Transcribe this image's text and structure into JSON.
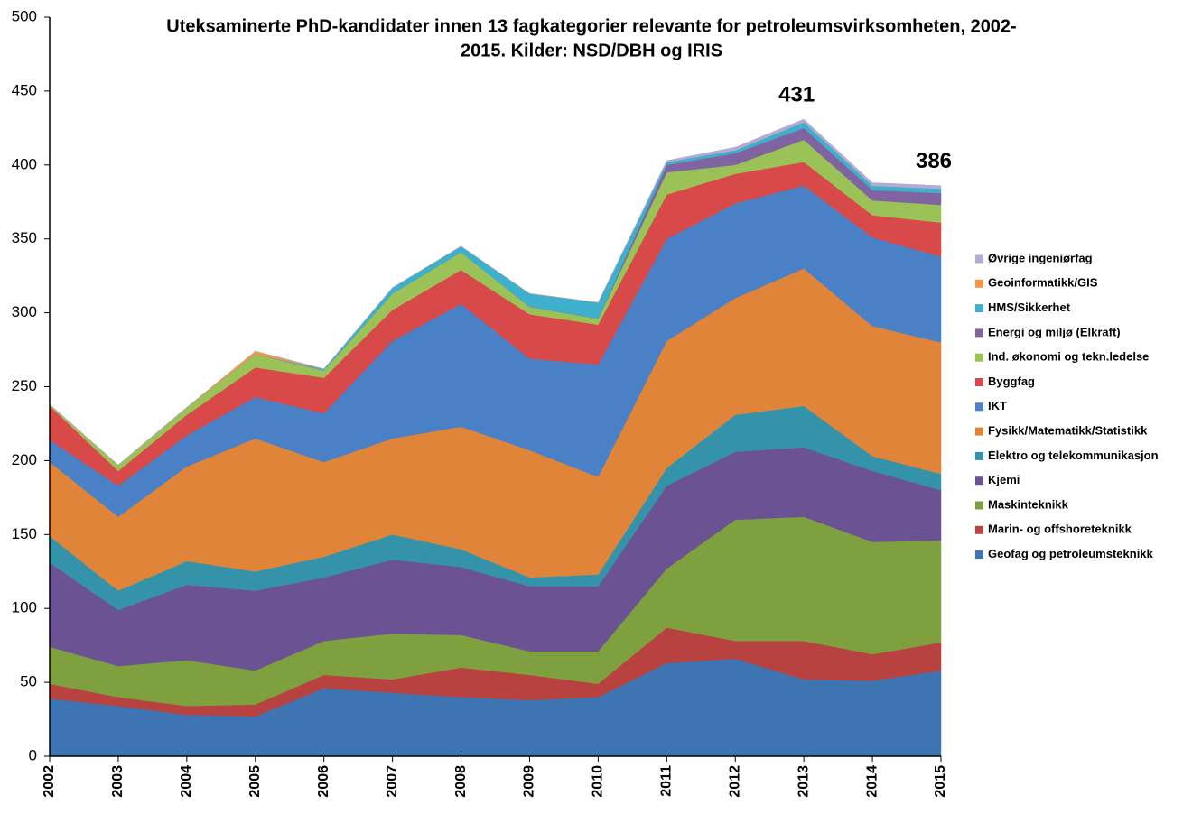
{
  "chart_data": {
    "type": "stacked-area",
    "title": [
      "Uteksaminerte PhD-kandidater innen 13 fagkategorier relevante for petroleumsvirksomheten, 2002-",
      "2015. Kilder: NSD/DBH og IRIS"
    ],
    "categories": [
      "2002",
      "2003",
      "2004",
      "2005",
      "2006",
      "2007",
      "2008",
      "2009",
      "2010",
      "2011",
      "2012",
      "2013",
      "2014",
      "2015"
    ],
    "ylim": [
      0,
      500
    ],
    "yticks": [
      0,
      50,
      100,
      150,
      200,
      250,
      300,
      350,
      400,
      450,
      500
    ],
    "series": [
      {
        "name": "Geofag og petroleumsteknikk",
        "color": "#3f74b3",
        "values": [
          39,
          34,
          28,
          27,
          46,
          43,
          40,
          38,
          40,
          63,
          66,
          52,
          51,
          58
        ]
      },
      {
        "name": "Marin- og offshoreteknikk",
        "color": "#b8423f",
        "values": [
          10,
          6,
          6,
          8,
          9,
          9,
          20,
          17,
          9,
          24,
          12,
          26,
          18,
          19
        ]
      },
      {
        "name": "Maskinteknikk",
        "color": "#7ea03e",
        "values": [
          25,
          21,
          31,
          23,
          23,
          31,
          22,
          16,
          22,
          40,
          82,
          84,
          76,
          69
        ]
      },
      {
        "name": "Kjemi",
        "color": "#6b5393",
        "values": [
          57,
          38,
          51,
          54,
          43,
          50,
          46,
          44,
          44,
          56,
          46,
          47,
          48,
          34
        ]
      },
      {
        "name": "Elektro og telekommunikasjon",
        "color": "#3593a9",
        "values": [
          18,
          13,
          16,
          13,
          14,
          17,
          12,
          6,
          8,
          12,
          25,
          28,
          10,
          11
        ]
      },
      {
        "name": "Fysikk/Matematikk/Statistikk",
        "color": "#e0843a",
        "values": [
          50,
          50,
          64,
          90,
          64,
          65,
          83,
          86,
          66,
          86,
          79,
          93,
          88,
          89
        ]
      },
      {
        "name": "IKT",
        "color": "#4a80c6",
        "values": [
          15,
          21,
          21,
          28,
          33,
          66,
          83,
          62,
          76,
          69,
          64,
          56,
          60,
          58
        ]
      },
      {
        "name": "Byggfag",
        "color": "#d84a4a",
        "values": [
          23,
          10,
          14,
          20,
          24,
          21,
          23,
          30,
          27,
          30,
          20,
          16,
          15,
          23
        ]
      },
      {
        "name": "Ind. økonomi og tekn.ledelse",
        "color": "#9bc256",
        "values": [
          1,
          4,
          5,
          9,
          5,
          11,
          12,
          5,
          4,
          15,
          6,
          15,
          10,
          12
        ]
      },
      {
        "name": "Energi og miljø (Elkraft)",
        "color": "#8064a2",
        "values": [
          0,
          0,
          0,
          0,
          0,
          0,
          0,
          0,
          0,
          5,
          8,
          8,
          7,
          8
        ]
      },
      {
        "name": "HMS/Sikkerhet",
        "color": "#3fb0cc",
        "values": [
          0,
          0,
          0,
          0,
          1,
          4,
          4,
          9,
          11,
          2,
          2,
          4,
          3,
          3
        ]
      },
      {
        "name": "Geoinformatikk/GIS",
        "color": "#f79646",
        "values": [
          0,
          0,
          0,
          2,
          0,
          0,
          0,
          0,
          0,
          0,
          0,
          0,
          0,
          0
        ]
      },
      {
        "name": "Øvrige ingeniørfag",
        "color": "#b4aad6",
        "values": [
          0,
          0,
          0,
          0,
          0,
          0,
          0,
          0,
          0,
          1,
          2,
          2,
          2,
          2
        ]
      }
    ],
    "annotations": [
      {
        "category": "2013",
        "value": 431
      },
      {
        "category": "2015",
        "value": 386
      }
    ],
    "legend": "right"
  }
}
